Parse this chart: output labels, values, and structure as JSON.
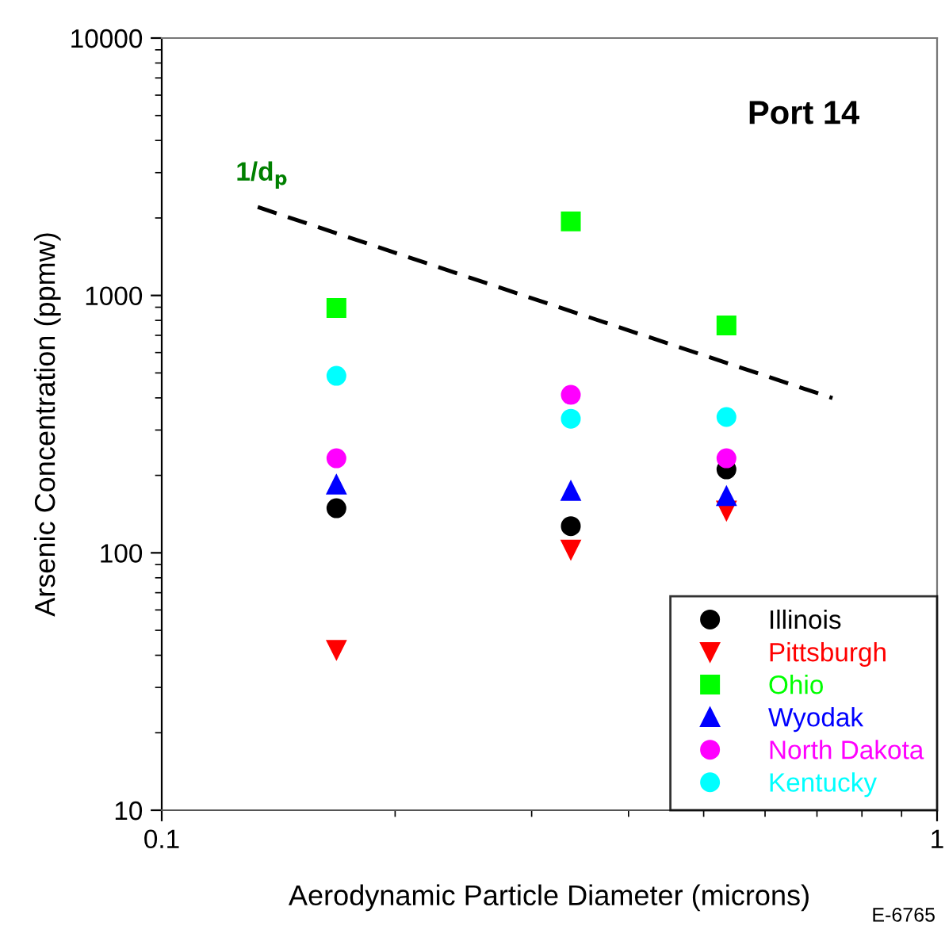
{
  "chart_data": {
    "type": "scatter",
    "xlabel": "Aerodynamic Particle Diameter (microns)",
    "ylabel": "Arsenic Concentration (ppmw)",
    "log": "xy",
    "xlim": [
      0.1,
      1
    ],
    "ylim": [
      10,
      10000
    ],
    "xticks": [
      0.1,
      1
    ],
    "yticks": [
      10,
      100,
      1000,
      10000
    ],
    "grid": false,
    "legend": "bottom right",
    "x": [
      0.168,
      0.337,
      0.535
    ],
    "series": [
      {
        "name": "Illinois",
        "color": "#000000",
        "marker": "circle",
        "values": [
          149,
          127,
          211
        ]
      },
      {
        "name": "Pittsburgh",
        "color": "#ff0000",
        "marker": "triangle_down",
        "values": [
          42,
          103,
          146
        ]
      },
      {
        "name": "Ohio",
        "color": "#00ff00",
        "marker": "square",
        "values": [
          893,
          1940,
          765
        ]
      },
      {
        "name": "Wyodak",
        "color": "#0000ff",
        "marker": "triangle",
        "values": [
          184,
          174,
          166
        ]
      },
      {
        "name": "North Dakota",
        "color": "#ff00ff",
        "marker": "circle",
        "values": [
          233,
          411,
          233
        ]
      },
      {
        "name": "Kentucky",
        "color": "#00ffff",
        "marker": "circle",
        "values": [
          487,
          332,
          337
        ]
      },
      {
        "type": "line",
        "color": "#000000",
        "line_style": "dashed",
        "marker": "none",
        "x": [
          0.133,
          0.733
        ],
        "values": [
          2205,
          399
        ]
      }
    ],
    "annotations": [
      {
        "text": "1/d$_{p}$",
        "x": 0.133,
        "y": 2205
      },
      "Port 14",
      "E-6765"
    ]
  }
}
